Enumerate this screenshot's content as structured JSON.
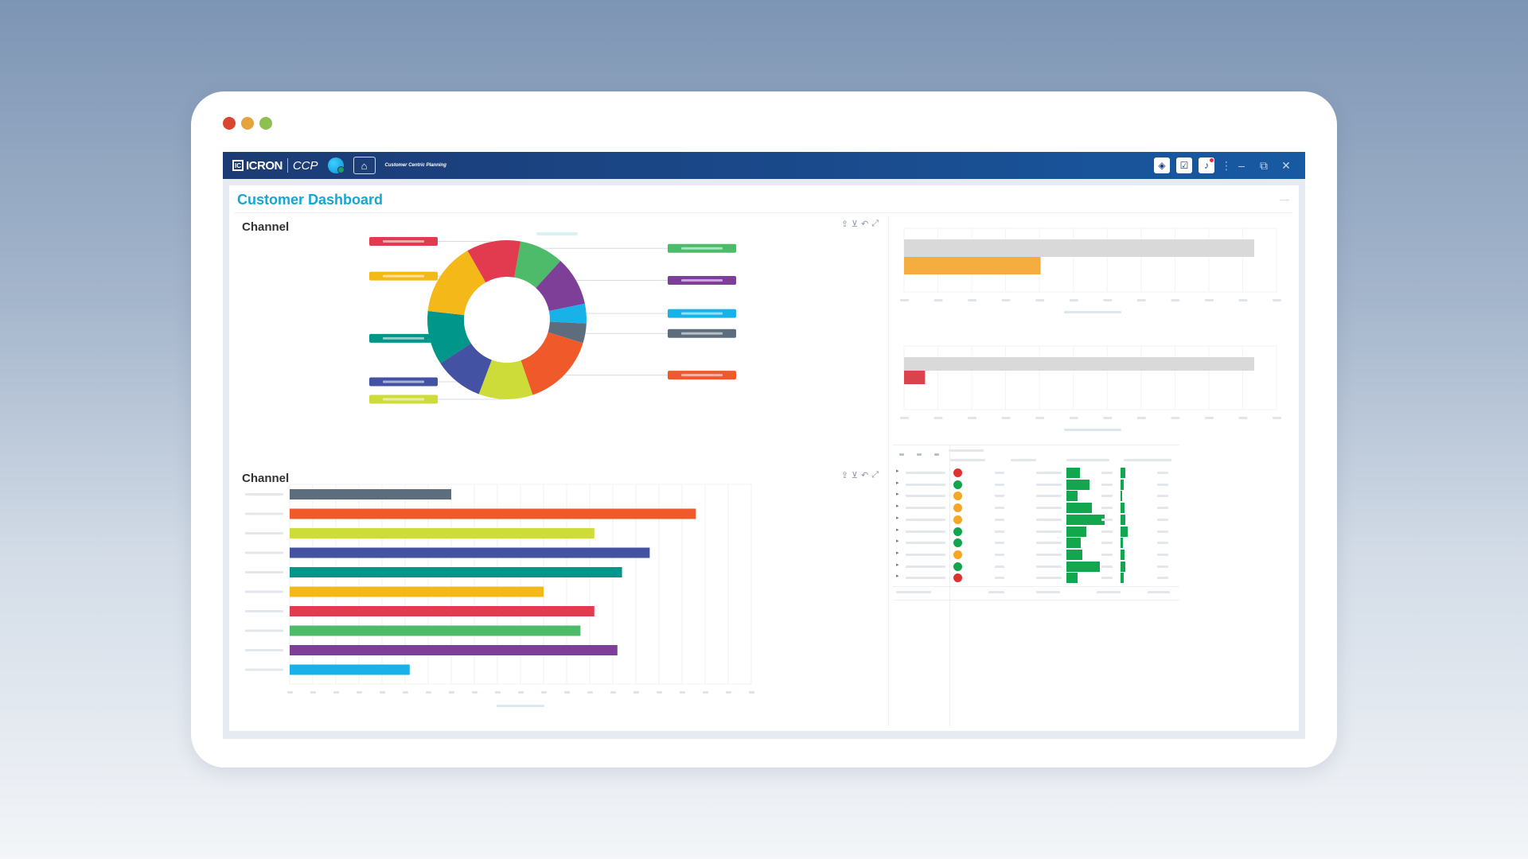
{
  "window": {
    "traffic_colors": [
      "#d9452f",
      "#e3a33e",
      "#8cc152"
    ]
  },
  "topbar": {
    "logo_mark": "IC",
    "brand": "ICRON",
    "product": "CCP",
    "module": "Customer Centric Planning",
    "icons": [
      "globe-icon",
      "home-icon",
      "layers-icon",
      "task-check-icon",
      "bell-icon",
      "kebab-icon",
      "minimize-icon",
      "restore-icon",
      "close-icon"
    ],
    "win_minimize": "–",
    "win_restore": "⧉",
    "win_close": "✕"
  },
  "page": {
    "title": "Customer Dashboard"
  },
  "donut_panel": {
    "title": "Channel"
  },
  "bar_panel": {
    "title": "Channel"
  },
  "chart_data": [
    {
      "type": "pie",
      "variant": "donut",
      "title": "Channel",
      "labels_visible": false,
      "values": [
        0.11,
        0.09,
        0.1,
        0.04,
        0.04,
        0.15,
        0.11,
        0.1,
        0.11,
        0.15
      ],
      "colors": [
        "#e23a4f",
        "#4dbb6a",
        "#7d3f98",
        "#19b2e8",
        "#5d6d7e",
        "#f05a2a",
        "#cddc39",
        "#4352a3",
        "#00968a",
        "#f5b819"
      ]
    },
    {
      "type": "bar",
      "orientation": "horizontal",
      "title": "Channel",
      "labels_visible": false,
      "values": [
        35,
        88,
        66,
        78,
        72,
        55,
        66,
        63,
        71,
        26
      ],
      "colors": [
        "#5d6d7e",
        "#f05a2a",
        "#cddc39",
        "#4352a3",
        "#00968a",
        "#f5b819",
        "#e23a4f",
        "#4dbb6a",
        "#7d3f98",
        "#19b2e8"
      ],
      "xlim": [
        0,
        100
      ],
      "grid": true
    },
    {
      "type": "bar",
      "orientation": "horizontal",
      "labels_visible": false,
      "series": [
        {
          "color": "#d9d9d9",
          "values": [
            100
          ]
        },
        {
          "color": "#f6ad3f",
          "values": [
            39
          ]
        }
      ],
      "grid": true
    },
    {
      "type": "bar",
      "orientation": "horizontal",
      "labels_visible": false,
      "series": [
        {
          "color": "#d9d9d9",
          "values": [
            100
          ]
        },
        {
          "color": "#d9434c",
          "values": [
            6
          ]
        }
      ],
      "grid": true
    }
  ],
  "table": {
    "labels_visible": false,
    "status_colors": {
      "red": "#e03131",
      "green": "#14a44d",
      "orange": "#f5a623"
    },
    "rows": [
      {
        "status": "red",
        "bar1": 0.28,
        "bar2": 0.55
      },
      {
        "status": "green",
        "bar1": 0.55,
        "bar2": 0.25
      },
      {
        "status": "orange",
        "bar1": 0.22,
        "bar2": 0.0
      },
      {
        "status": "orange",
        "bar1": 0.6,
        "bar2": 0.4
      },
      {
        "status": "orange",
        "bar1": 0.95,
        "bar2": 0.5
      },
      {
        "status": "green",
        "bar1": 0.45,
        "bar2": 0.85
      },
      {
        "status": "green",
        "bar1": 0.3,
        "bar2": 0.1
      },
      {
        "status": "orange",
        "bar1": 0.35,
        "bar2": 0.4
      },
      {
        "status": "green",
        "bar1": 0.82,
        "bar2": 0.45
      },
      {
        "status": "red",
        "bar1": 0.22,
        "bar2": 0.3
      }
    ]
  }
}
